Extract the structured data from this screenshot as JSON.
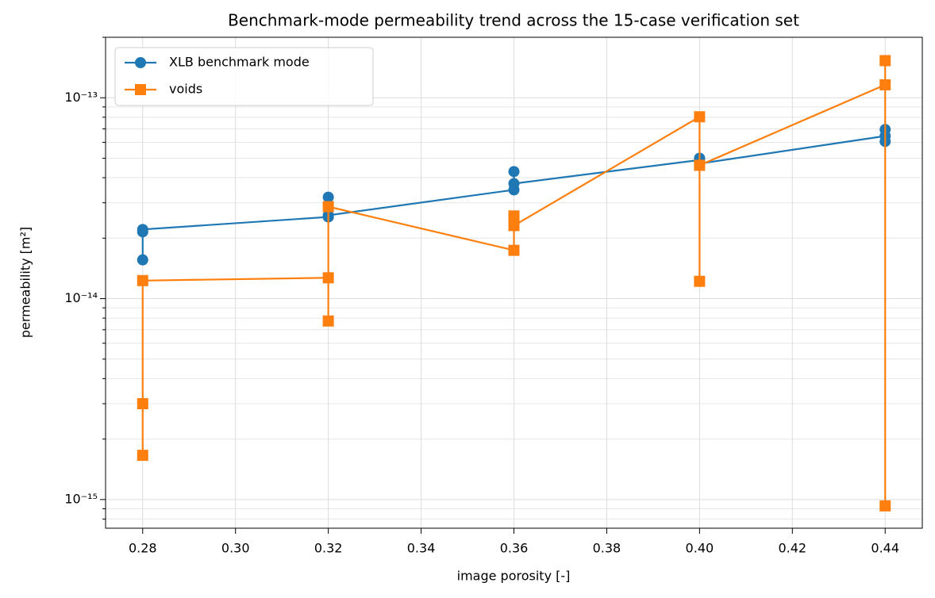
{
  "chart_data": {
    "type": "line",
    "title": "Benchmark-mode permeability trend across the 15-case verification set",
    "x_label": "image porosity [-]",
    "y_label": "permeability [m²]",
    "x": [
      0.28,
      0.28,
      0.28,
      0.32,
      0.32,
      0.32,
      0.36,
      0.36,
      0.36,
      0.4,
      0.4,
      0.4,
      0.44,
      0.44,
      0.44
    ],
    "series": [
      {
        "name": "XLB benchmark mode",
        "color": "#1f77b4",
        "marker": "circle",
        "values": [
          1.56e-14,
          2.15e-14,
          2.21e-14,
          2.55e-14,
          3.2e-14,
          2.6e-14,
          3.48e-14,
          4.29e-14,
          3.74e-14,
          4.9e-14,
          5e-14,
          4.7e-14,
          6.45e-14,
          6.95e-14,
          6.06e-14
        ]
      },
      {
        "name": "voids",
        "color": "#ff7f0e",
        "marker": "square",
        "values": [
          1.66e-15,
          3e-15,
          1.23e-14,
          1.27e-14,
          7.74e-15,
          2.87e-14,
          1.74e-14,
          2.58e-14,
          2.31e-14,
          8.04e-14,
          1.22e-14,
          4.61e-14,
          1.16e-13,
          1.53e-13,
          9.3e-16
        ]
      }
    ],
    "xlim": [
      0.272,
      0.448
    ],
    "xticks": [
      0.28,
      {
        "value": 0.3,
        "label": "0.30"
      },
      0.32,
      0.34,
      0.36,
      0.38,
      {
        "value": 0.4,
        "label": "0.40"
      },
      0.42,
      0.44
    ],
    "ylim": [
      7.2e-16,
      2e-13
    ],
    "y_log_scale": true,
    "yticks": [
      {
        "value": 1e-15,
        "label": "10⁻¹⁵"
      },
      {
        "value": 1e-14,
        "label": "10⁻¹⁴"
      },
      {
        "value": 1e-13,
        "label": "10⁻¹³"
      }
    ],
    "yminor_ticks": [
      8e-16,
      9e-16,
      2e-15,
      3e-15,
      4e-15,
      5e-15,
      6e-15,
      7e-15,
      8e-15,
      9e-15,
      2e-14,
      3e-14,
      4e-14,
      5e-14,
      6e-14,
      7e-14,
      8e-14,
      9e-14,
      2e-13
    ],
    "grid": true,
    "legend_position": "upper-left"
  }
}
